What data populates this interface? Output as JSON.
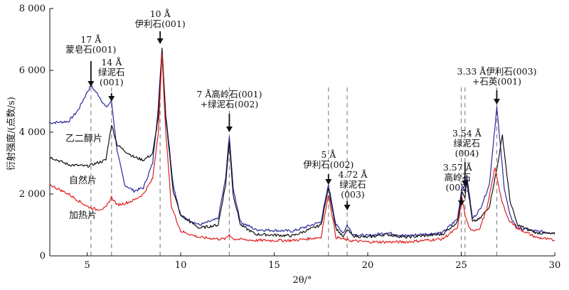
{
  "chart_data": {
    "type": "line",
    "title": "",
    "xlabel": "2θ/°",
    "ylabel": "衍射强度/(点数/s)",
    "xlim": [
      3,
      30
    ],
    "ylim": [
      0,
      8000
    ],
    "x_ticks": [
      5,
      10,
      15,
      20,
      25,
      30
    ],
    "y_ticks": [
      0,
      2000,
      4000,
      6000,
      8000
    ],
    "y_tick_labels": [
      "0",
      "2 000",
      "4 000",
      "6 000",
      "8 000"
    ],
    "colors": {
      "乙二醇片": "#2b2b9e",
      "自然片": "#111111",
      "加热片": "#e02020",
      "marker": "#888888"
    },
    "series": [
      {
        "name": "乙二醇片",
        "x": [
          3,
          4,
          4.5,
          5,
          5.2,
          5.6,
          6,
          6.3,
          6.6,
          7,
          7.5,
          8,
          8.5,
          8.8,
          9,
          9.2,
          9.6,
          10,
          11,
          12,
          12.4,
          12.6,
          12.8,
          13.2,
          14,
          16,
          17.5,
          17.9,
          18.3,
          18.7,
          18.9,
          19.2,
          20,
          21,
          22,
          24,
          24.8,
          25.05,
          25.2,
          25.3,
          25.6,
          26,
          26.5,
          26.9,
          27.3,
          27.6,
          28,
          29,
          30
        ],
        "y": [
          4300,
          4350,
          4700,
          5300,
          5500,
          5200,
          4800,
          5000,
          3400,
          2300,
          2100,
          2200,
          3000,
          4800,
          6700,
          4600,
          2300,
          1300,
          1000,
          1200,
          2500,
          3900,
          2200,
          1100,
          850,
          800,
          1100,
          2300,
          1000,
          750,
          1000,
          700,
          650,
          750,
          650,
          750,
          1200,
          2300,
          2100,
          2600,
          1200,
          1500,
          2300,
          4800,
          2200,
          1300,
          900,
          800,
          750
        ]
      },
      {
        "name": "自然片",
        "x": [
          3,
          4,
          5,
          6,
          6.3,
          6.6,
          7,
          7.5,
          8,
          8.5,
          8.8,
          9,
          9.2,
          9.6,
          10,
          11,
          12,
          12.4,
          12.6,
          12.8,
          13.2,
          14,
          16,
          17.5,
          17.9,
          18.3,
          18.7,
          18.9,
          19.2,
          20,
          21,
          22,
          24,
          24.8,
          25.05,
          25.2,
          25.3,
          25.6,
          26,
          26.5,
          26.9,
          27.2,
          27.6,
          28,
          29,
          30
        ],
        "y": [
          3200,
          2950,
          2900,
          3100,
          4250,
          3600,
          3400,
          3200,
          3100,
          3300,
          4500,
          6700,
          4500,
          2100,
          1300,
          900,
          1000,
          2300,
          3700,
          2000,
          1000,
          700,
          650,
          1000,
          2200,
          900,
          600,
          850,
          650,
          600,
          700,
          600,
          700,
          1100,
          2100,
          1900,
          2400,
          1100,
          1200,
          1600,
          2800,
          3900,
          1800,
          1000,
          750,
          700
        ]
      },
      {
        "name": "加热片",
        "x": [
          3,
          4,
          5,
          5.5,
          6,
          6.3,
          6.6,
          7,
          7.5,
          8,
          8.5,
          8.8,
          9,
          9.2,
          9.5,
          10,
          11,
          12,
          12.4,
          12.6,
          12.8,
          14,
          16,
          17.5,
          17.9,
          18.3,
          19,
          20,
          21,
          22,
          24,
          24.8,
          25.05,
          25.2,
          25.5,
          26,
          26.4,
          26.8,
          27.2,
          27.5,
          28,
          29,
          30
        ],
        "y": [
          2300,
          2000,
          1600,
          1500,
          1550,
          1900,
          1650,
          1700,
          1800,
          2000,
          2500,
          4000,
          6500,
          4000,
          1600,
          800,
          600,
          550,
          550,
          700,
          550,
          500,
          500,
          600,
          2000,
          600,
          500,
          450,
          450,
          450,
          550,
          900,
          1900,
          1300,
          800,
          900,
          1600,
          2850,
          1700,
          1200,
          900,
          600,
          500
        ]
      }
    ],
    "reference_lines_x": [
      5.2,
      6.3,
      8.9,
      12.6,
      17.9,
      18.9,
      25.0,
      25.2,
      26.9
    ],
    "annotations": [
      {
        "lines": [
          "17 Å",
          "蒙皂石(001)"
        ],
        "x": 5.2
      },
      {
        "lines": [
          "14 Å",
          "绿泥石",
          "(001)"
        ],
        "x": 6.3
      },
      {
        "lines": [
          "10 Å",
          "伊利石(001)"
        ],
        "x": 8.9
      },
      {
        "lines": [
          "7 Å高岭石(001)",
          "+绿泥石(002)"
        ],
        "x": 12.6
      },
      {
        "lines": [
          "5 Å",
          "伊利石(002)"
        ],
        "x": 17.9
      },
      {
        "lines": [
          "4.72 Å",
          "绿泥石",
          "(003)"
        ],
        "x": 18.9
      },
      {
        "lines": [
          "3.57 Å",
          "高岭石",
          "(002)"
        ],
        "x": 25.0
      },
      {
        "lines": [
          "3.54 Å",
          "绿泥石",
          "(004)"
        ],
        "x": 25.2
      },
      {
        "lines": [
          "3.33 Å伊利石(003)",
          "+石英(001)"
        ],
        "x": 26.9
      }
    ],
    "series_labels": [
      "乙二醇片",
      "自然片",
      "加热片"
    ]
  }
}
